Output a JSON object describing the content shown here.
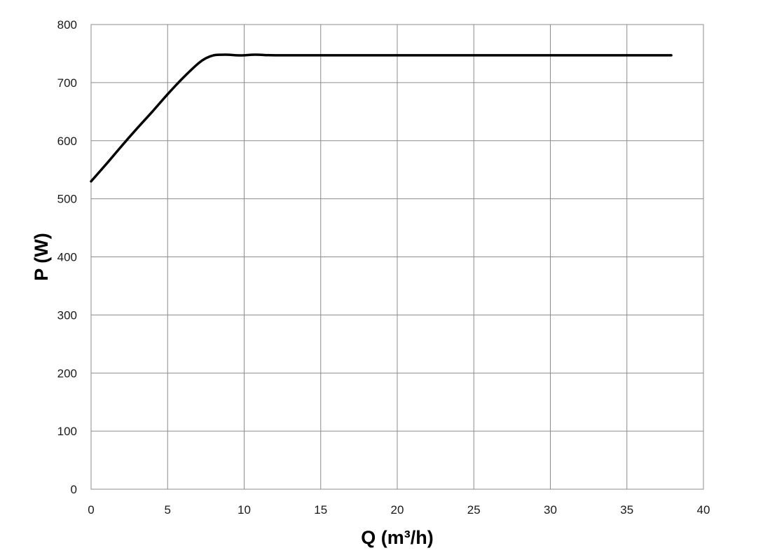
{
  "chart_data": {
    "type": "line",
    "title": "",
    "xlabel": "Q (m³/h)",
    "ylabel": "P (W)",
    "xlim": [
      0,
      40
    ],
    "ylim": [
      0,
      800
    ],
    "x_ticks": [
      0,
      5,
      10,
      15,
      20,
      25,
      30,
      35,
      40
    ],
    "y_ticks": [
      0,
      100,
      200,
      300,
      400,
      500,
      600,
      700,
      800
    ],
    "grid": true,
    "legend": "none",
    "series": [
      {
        "color": "#000000",
        "x": [
          0,
          1,
          2,
          3,
          4,
          5,
          6,
          7,
          7.5,
          8,
          8.5,
          9,
          9.5,
          10,
          10.5,
          11,
          12,
          15,
          20,
          25,
          30,
          35,
          37.9
        ],
        "y": [
          530,
          560,
          591,
          621,
          650,
          680,
          708,
          733,
          742,
          747,
          748,
          748,
          747,
          747,
          748,
          748,
          747,
          747,
          747,
          747,
          747,
          747,
          747
        ]
      }
    ]
  }
}
